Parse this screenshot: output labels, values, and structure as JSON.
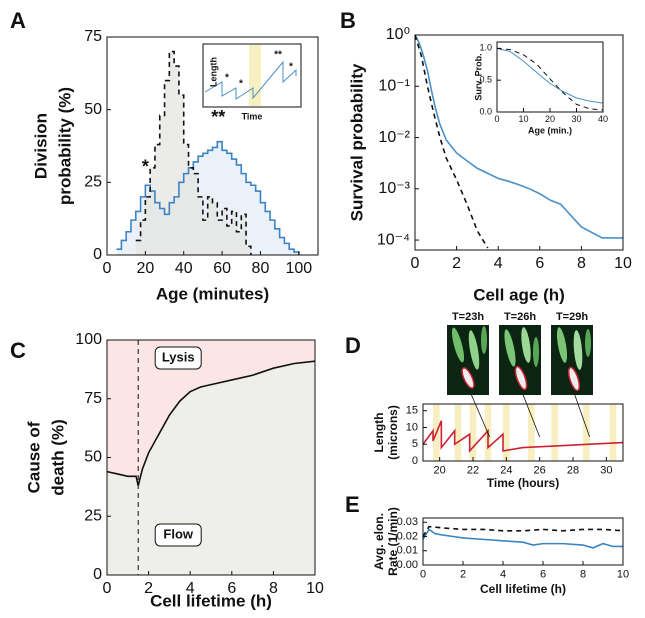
{
  "chart_data": [
    {
      "type": "line",
      "panel": "A",
      "xlabel": "Age (minutes)",
      "ylabel": [
        "Division",
        "probability (%)"
      ],
      "xlim": [
        0,
        110
      ],
      "ylim": [
        0,
        75
      ],
      "xticks": [
        0,
        20,
        40,
        60,
        80,
        100
      ],
      "yticks": [
        0,
        25,
        50,
        75
      ],
      "step": true,
      "series": [
        {
          "color": "#3b84c4",
          "fill": "#e3ecf7",
          "style": "solid",
          "x": [
            5,
            7.5,
            10,
            12.5,
            15,
            17.5,
            20,
            22.5,
            25,
            27.5,
            30,
            32.5,
            35,
            37.5,
            40,
            42.5,
            45,
            47.5,
            50,
            52.5,
            55,
            57.5,
            60,
            62.5,
            65,
            67.5,
            70,
            72.5,
            75,
            77.5,
            80,
            82.5,
            85,
            87.5,
            90,
            92.5,
            95,
            97.5,
            100
          ],
          "values": [
            2,
            5,
            8,
            12,
            15,
            20,
            24,
            22,
            18,
            16,
            14,
            18,
            20,
            25,
            28,
            30,
            32,
            34,
            35,
            36,
            37,
            39,
            36,
            35,
            33,
            31,
            28,
            25,
            24,
            22,
            18,
            15,
            12,
            9,
            6,
            4,
            2,
            1,
            0
          ]
        },
        {
          "color": "#111111",
          "fill": "#e4e4e2",
          "style": "dashed",
          "x": [
            15,
            17.5,
            20,
            22.5,
            25,
            27.5,
            30,
            32.5,
            35,
            37.5,
            40,
            42.5,
            45,
            47.5,
            50,
            52.5,
            55,
            57.5,
            60,
            62.5,
            65,
            67.5,
            70,
            72.5,
            75
          ],
          "values": [
            5,
            12,
            20,
            30,
            38,
            48,
            60,
            70,
            65,
            55,
            38,
            30,
            28,
            20,
            12,
            20,
            18,
            12,
            16,
            10,
            15,
            8,
            14,
            3,
            0
          ]
        }
      ],
      "annotations": [
        "*",
        "**"
      ],
      "inset": {
        "xlabel": "Time",
        "ylabel": "Length",
        "annotations": [
          "*",
          "*",
          "**",
          "*"
        ]
      }
    },
    {
      "type": "line",
      "panel": "B",
      "xlabel": "Cell age (h)",
      "ylabel": "Survival probability",
      "log_y": true,
      "xlim": [
        0,
        10
      ],
      "ylim": [
        6.4e-05,
        1
      ],
      "xticks": [
        0,
        2,
        4,
        6,
        8,
        10
      ],
      "yticks": [
        {
          "value": 1,
          "label": "10⁰"
        },
        {
          "value": 0.1,
          "label": "10⁻¹"
        },
        {
          "value": 0.01,
          "label": "10⁻²"
        },
        {
          "value": 0.001,
          "label": "10⁻³"
        },
        {
          "value": 0.0001,
          "label": "10⁻⁴"
        }
      ],
      "series": [
        {
          "color": "#4a90c8",
          "style": "solid",
          "x": [
            0,
            0.2,
            0.4,
            0.6,
            0.8,
            1,
            1.2,
            1.5,
            2,
            2.5,
            3,
            3.5,
            4,
            4.5,
            5,
            5.5,
            6,
            6.5,
            7,
            7.5,
            8,
            9,
            10
          ],
          "values": [
            1,
            0.7,
            0.4,
            0.2,
            0.08,
            0.035,
            0.018,
            0.009,
            0.005,
            0.0035,
            0.0025,
            0.002,
            0.0016,
            0.0014,
            0.0012,
            0.001,
            0.0008,
            0.0006,
            0.0005,
            0.0003,
            0.00018,
            0.00011,
            0.00011
          ]
        },
        {
          "color": "#111111",
          "style": "dashed",
          "x": [
            0,
            0.3,
            0.6,
            0.9,
            1.2,
            1.5,
            2,
            2.5,
            3,
            3.5
          ],
          "values": [
            1,
            0.4,
            0.1,
            0.03,
            0.01,
            0.004,
            0.0015,
            0.0005,
            0.00015,
            7e-05
          ]
        }
      ]
    },
    {
      "type": "line",
      "xlabel": "Age (min.)",
      "ylabel": "Surv. Prob.",
      "xlim": [
        0,
        40
      ],
      "ylim": [
        0,
        1.1
      ],
      "xticks": [
        0,
        10,
        20,
        30,
        40
      ],
      "yticks": [
        {
          "value": 0,
          "label": "0.0"
        },
        {
          "value": 0.5,
          "label": "0.5"
        },
        {
          "value": 1,
          "label": "1.0"
        }
      ],
      "series": [
        {
          "color": "#4a90c8",
          "style": "solid",
          "x": [
            0,
            5,
            10,
            15,
            20,
            25,
            30,
            35,
            40
          ],
          "values": [
            1.0,
            0.95,
            0.8,
            0.62,
            0.45,
            0.32,
            0.22,
            0.17,
            0.14
          ]
        },
        {
          "color": "#111111",
          "style": "dashed",
          "x": [
            0,
            5,
            10,
            15,
            20,
            25,
            30,
            35,
            40
          ],
          "values": [
            1.0,
            0.98,
            0.9,
            0.75,
            0.52,
            0.3,
            0.12,
            0.05,
            0.03
          ]
        }
      ]
    },
    {
      "type": "line",
      "panel": "C",
      "xlabel": "Cell lifetime (h)",
      "ylabel": [
        "Cause of",
        "death (%)"
      ],
      "xlim": [
        0,
        10
      ],
      "ylim": [
        0,
        100
      ],
      "xticks": [
        0,
        2,
        4,
        6,
        8,
        10
      ],
      "yticks": [
        0,
        25,
        50,
        75,
        100
      ],
      "vline": 1.5,
      "regions": [
        {
          "label": "Lysis",
          "color": "#fbe6e5"
        },
        {
          "label": "Flow",
          "color": "#eeeeeb"
        }
      ],
      "series": [
        {
          "color": "#111111",
          "style": "solid",
          "x": [
            0,
            0.5,
            1,
            1.4,
            1.5,
            1.7,
            2,
            2.5,
            3,
            3.5,
            4,
            4.5,
            5,
            6,
            7,
            8,
            9,
            10
          ],
          "values": [
            44,
            43,
            42,
            42,
            38,
            45,
            52,
            60,
            68,
            74,
            78,
            80,
            81,
            83,
            85,
            88,
            90,
            91
          ]
        }
      ]
    },
    {
      "type": "line",
      "panel": "D",
      "xlabel": "Time (hours)",
      "ylabel": [
        "Length",
        "(microns)"
      ],
      "xlim": [
        19,
        31
      ],
      "ylim": [
        0,
        17
      ],
      "xticks": [
        20,
        22,
        24,
        26,
        28,
        30
      ],
      "yticks": [
        0,
        5,
        10,
        15
      ],
      "images": [
        "T=23h",
        "T=26h",
        "T=29h"
      ],
      "image_times": [
        23,
        26,
        29
      ],
      "highlight_x": [
        19.6,
        20.9,
        21.8,
        22.7,
        23.8,
        25.3,
        26.7,
        28.6,
        30.2
      ],
      "highlight_width": 0.4,
      "series": [
        {
          "color": "#cc2233",
          "style": "solid",
          "x": [
            19,
            19.6,
            19.6,
            20.1,
            20.1,
            20.9,
            20.9,
            21.8,
            21.8,
            22.9,
            22.9,
            23.8,
            23.8,
            25,
            27,
            29,
            31
          ],
          "values": [
            5,
            9,
            6,
            12,
            4,
            9,
            5,
            8,
            3,
            9,
            4,
            8,
            3,
            4,
            4.5,
            5,
            5.5
          ]
        }
      ]
    },
    {
      "type": "line",
      "panel": "E",
      "xlabel": "Cell lifetime (h)",
      "ylabel": [
        "Avg. elon.",
        "Rate (1/min)"
      ],
      "xlim": [
        0,
        10
      ],
      "ylim": [
        0,
        0.033
      ],
      "xticks": [
        0,
        2,
        4,
        6,
        8,
        10
      ],
      "yticks": [
        {
          "value": 0,
          "label": "0.00"
        },
        {
          "value": 0.01,
          "label": "0.01"
        },
        {
          "value": 0.02,
          "label": "0.02"
        },
        {
          "value": 0.03,
          "label": "0.03"
        }
      ],
      "series": [
        {
          "color": "#3b84c4",
          "style": "solid",
          "x": [
            0,
            0.3,
            0.6,
            1,
            1.5,
            2,
            3,
            4,
            5,
            5.5,
            6,
            7,
            8,
            8.5,
            9,
            9.5,
            10
          ],
          "values": [
            0.018,
            0.025,
            0.022,
            0.021,
            0.02,
            0.019,
            0.018,
            0.017,
            0.016,
            0.014,
            0.015,
            0.015,
            0.014,
            0.012,
            0.015,
            0.013,
            0.013
          ]
        },
        {
          "color": "#111111",
          "style": "dashed",
          "x": [
            0,
            0.3,
            1,
            2,
            3,
            4,
            5,
            6,
            7,
            8,
            9,
            10
          ],
          "values": [
            0.02,
            0.027,
            0.026,
            0.025,
            0.025,
            0.024,
            0.024,
            0.025,
            0.024,
            0.025,
            0.025,
            0.024
          ]
        }
      ]
    }
  ]
}
